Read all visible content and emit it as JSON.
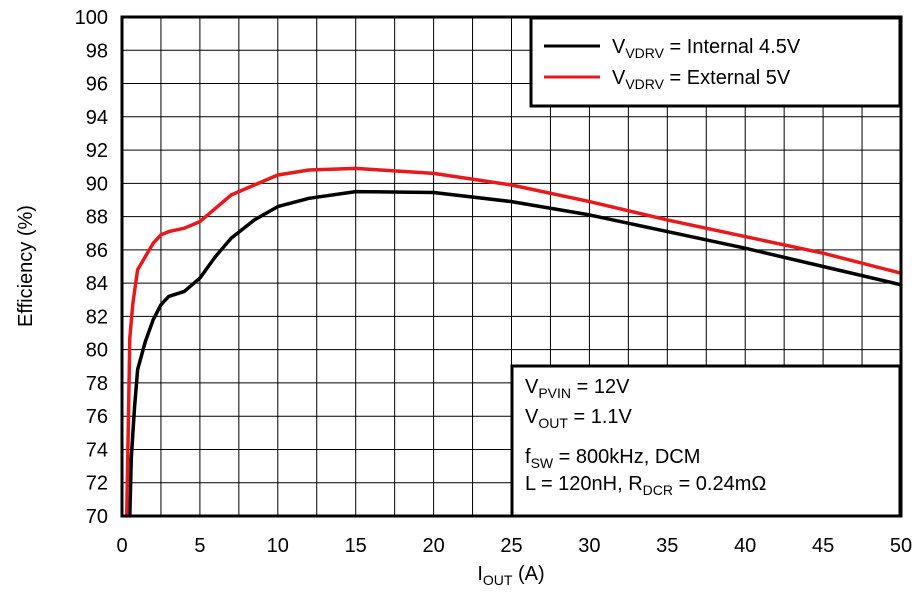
{
  "chart_data": {
    "type": "line",
    "xlabel": {
      "main": "I",
      "sub": "OUT",
      "rest": " (A)"
    },
    "ylabel": "Efficiency (%)",
    "xlim": [
      0,
      50
    ],
    "ylim": [
      70,
      100
    ],
    "xticks": [
      0,
      5,
      10,
      15,
      20,
      25,
      30,
      35,
      40,
      45,
      50
    ],
    "yticks": [
      70,
      72,
      74,
      76,
      78,
      80,
      82,
      84,
      86,
      88,
      90,
      92,
      94,
      96,
      98,
      100
    ],
    "grid": true,
    "legend_position": "top-right",
    "series": [
      {
        "name": {
          "main": "V",
          "sub": "VDRV",
          "rest": " = Internal 4.5V"
        },
        "color": "#000000",
        "x": [
          0.5,
          0.6,
          0.8,
          1.0,
          1.5,
          2.0,
          2.5,
          3.0,
          4.0,
          5.0,
          6.0,
          7.0,
          8.5,
          10.0,
          12.0,
          15.0,
          20.0,
          25.0,
          30.0,
          35.0,
          40.0,
          45.0,
          50.0
        ],
        "y": [
          70.0,
          73.5,
          76.5,
          78.8,
          80.5,
          81.8,
          82.7,
          83.2,
          83.5,
          84.3,
          85.6,
          86.7,
          87.8,
          88.6,
          89.1,
          89.5,
          89.45,
          88.9,
          88.1,
          87.1,
          86.1,
          85.0,
          83.9
        ]
      },
      {
        "name": {
          "main": "V",
          "sub": "VDRV",
          "rest": " = External 5V"
        },
        "color": "#e8191c",
        "x": [
          0.3,
          0.4,
          0.5,
          0.7,
          1.0,
          1.5,
          2.0,
          2.5,
          3.0,
          4.0,
          5.0,
          6.0,
          7.0,
          8.5,
          10.0,
          12.0,
          15.0,
          20.0,
          25.0,
          30.0,
          35.0,
          40.0,
          45.0,
          50.0
        ],
        "y": [
          70.0,
          75.0,
          80.7,
          82.8,
          84.8,
          85.6,
          86.4,
          86.9,
          87.1,
          87.3,
          87.7,
          88.5,
          89.3,
          89.9,
          90.5,
          90.8,
          90.9,
          90.6,
          89.9,
          88.9,
          87.8,
          86.8,
          85.8,
          84.6
        ]
      }
    ],
    "annotation": [
      {
        "main": "V",
        "sub": "PVIN",
        "rest": " = 12V"
      },
      {
        "main": "V",
        "sub": "OUT",
        "rest": " = 1.1V"
      },
      {
        "main": "f",
        "sub": "SW",
        "rest": " = 800kHz, DCM"
      },
      {
        "main": "L = 120nH, R",
        "sub": "DCR",
        "rest": " = 0.24mΩ"
      }
    ]
  }
}
